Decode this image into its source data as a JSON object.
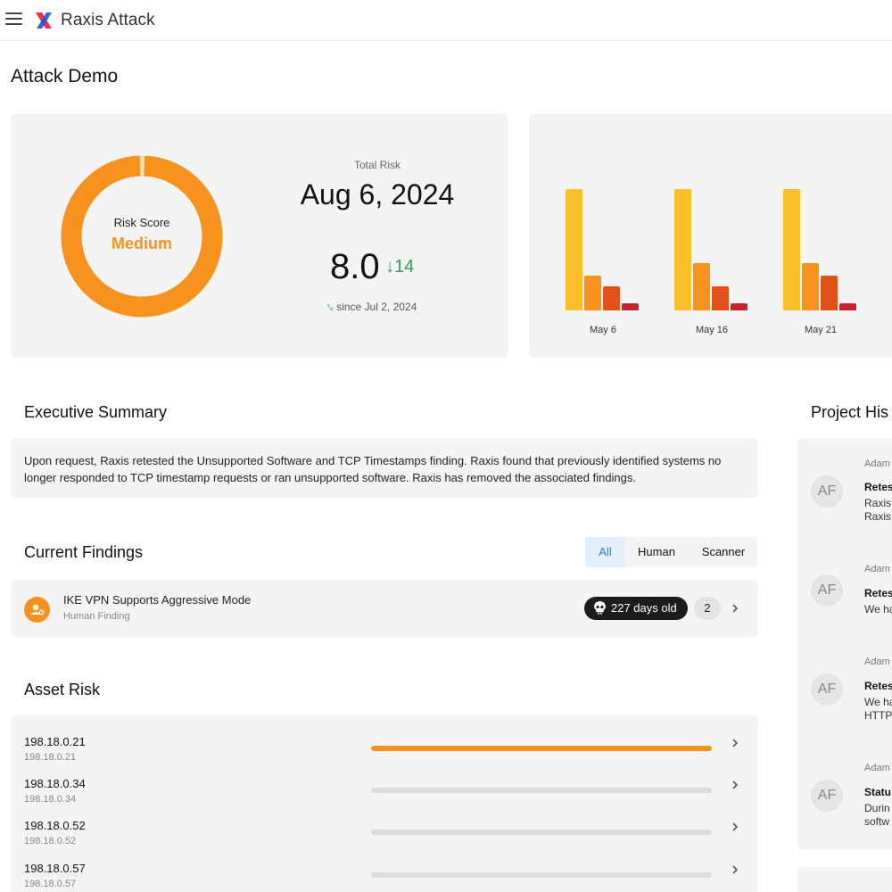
{
  "app": {
    "title": "Raxis Attack"
  },
  "page": {
    "title": "Attack Demo"
  },
  "risk": {
    "score_label": "Risk Score",
    "score_value": "Medium",
    "total_label": "Total Risk",
    "date": "Aug 6, 2024",
    "score": "8.0",
    "delta": "↓14",
    "since": "since Jul 2, 2024",
    "donut_fill_fraction": 0.99
  },
  "risk_chart": {
    "type": "bar",
    "categories": [
      "May 6",
      "May 16",
      "May 21"
    ],
    "series": [
      {
        "values": [
          10,
          10,
          10
        ],
        "color": "#fbbf2b"
      },
      {
        "values": [
          2.9,
          3.9,
          3.9
        ],
        "color": "#f7921e"
      },
      {
        "values": [
          2.0,
          2.0,
          2.9
        ],
        "color": "#e4521b"
      },
      {
        "values": [
          0.6,
          0.6,
          0.6
        ],
        "color": "#c8242f"
      }
    ],
    "ylim": [
      0,
      10
    ]
  },
  "summary": {
    "title": "Executive Summary",
    "text": "Upon request, Raxis retested the Unsupported Software and TCP Timestamps finding. Raxis found that previously identified systems no longer responded to TCP timestamp requests or ran unsupported software. Raxis has removed the associated findings."
  },
  "findings": {
    "title": "Current Findings",
    "tabs": [
      "All",
      "Human",
      "Scanner"
    ],
    "active_tab": "All",
    "items": [
      {
        "title": "IKE VPN Supports Aggressive Mode",
        "type": "Human Finding",
        "age": "227 days old",
        "count": "2"
      }
    ]
  },
  "assets": {
    "title": "Asset Risk",
    "rows": [
      {
        "name": "198.18.0.21",
        "sub": "198.18.0.21",
        "risk_fraction": 1.0
      },
      {
        "name": "198.18.0.34",
        "sub": "198.18.0.34",
        "risk_fraction": 0
      },
      {
        "name": "198.18.0.52",
        "sub": "198.18.0.52",
        "risk_fraction": 0
      },
      {
        "name": "198.18.0.57",
        "sub": "198.18.0.57",
        "risk_fraction": 0
      }
    ]
  },
  "history": {
    "title": "Project His",
    "items": [
      {
        "author": "Adam",
        "initials": "AF",
        "title": "Retes",
        "lines": [
          "Raxis",
          "Raxis"
        ]
      },
      {
        "author": "Adam",
        "initials": "AF",
        "title": "Retes",
        "lines": [
          "We ha"
        ]
      },
      {
        "author": "Adam",
        "initials": "AF",
        "title": "Retes",
        "lines": [
          "We ha",
          "HTTP"
        ]
      },
      {
        "author": "Adam",
        "initials": "AF",
        "title": "Statu",
        "lines": [
          "Durin",
          "softw"
        ]
      }
    ]
  },
  "colors": {
    "accent": "#f7921e",
    "positive": "#2e9e57",
    "tab_active": "#2d7fc7",
    "card_bg": "#f4f4f4"
  },
  "icons": [
    "menu-icon",
    "raxis-logo-icon",
    "trend-down-icon",
    "finding-person-icon",
    "skull-icon",
    "chevron-right-icon"
  ]
}
